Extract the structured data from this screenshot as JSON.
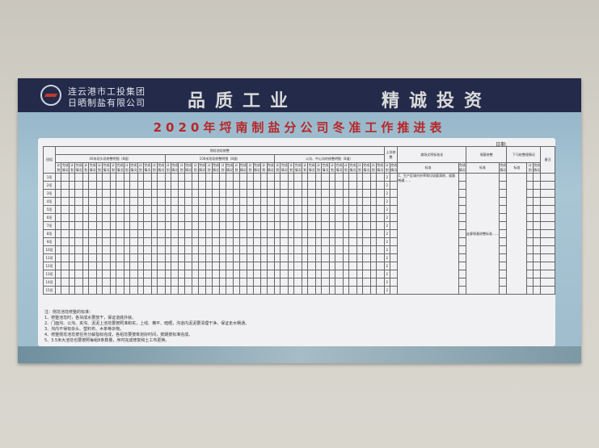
{
  "header": {
    "company_line1": "连云港市工投集团",
    "company_line2": "日晒制盐有限公司",
    "slogan_left": "品质工业",
    "slogan_right": "精诚投资"
  },
  "title": "2020年埒南制盐分公司冬准工作推进表",
  "date_label": "日期:",
  "table": {
    "col_team": "班组",
    "group_main": "侧埝池埝修整",
    "groups": [
      "40米埝头埝修整明细（8道）",
      "100米池埝修整明细（8道）",
      "公沟、中心沟的修整明细（8道）"
    ],
    "soil": "土埝修整",
    "civil": "滩场文明标准化",
    "base": "堰基修整",
    "post": "下马桩整理情况",
    "remark": "备注",
    "plan": "计划",
    "done": "完成情况",
    "standard": "标准",
    "rows": [
      "1垣",
      "2垣",
      "3垣",
      "4垣",
      "5垣",
      "6垣",
      "7垣",
      "8垣",
      "9垣",
      "10垣",
      "11垣",
      "12垣",
      "13垣",
      "14垣",
      "15垣"
    ],
    "soil_value": "2",
    "civil_text": "1、生产区域内杂草和垃圾要清除，道路畅通……",
    "base_text": "走廊堰基修整标准……"
  },
  "notes": [
    "注：侧埝池埝修整的标准：",
    "1、修整池埝时，各块成水要放干，保证道底外就。",
    "2、门面沟、公沟、夹沟、泥泥上池埝要按照准和实，上线、横平、暗晒，沟道内泥泥要清理干净，保证走水畅通。",
    "3、沟内不得有杂头、塑料布、木条等杂物。",
    "4、修整侧埝池埝按任务分解指标完成，各组埝要按筹划好时间，按期按标准完成。",
    "5、3.5米大池埝也要按照每组8条数量，序时完成修复和土工布更换。"
  ]
}
